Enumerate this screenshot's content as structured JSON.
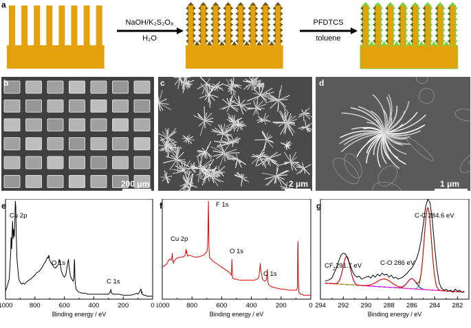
{
  "panel_labels": {
    "a": "a",
    "b": "b",
    "c": "c",
    "d": "d",
    "e": "e",
    "f": "f",
    "g": "g"
  },
  "scheme": {
    "step1_top": "NaOH/K₂S₂O₈",
    "step1_bottom": "H₂O",
    "step2_top": "PFDTCS",
    "step2_bottom": "toluene",
    "colors": {
      "copper": "#e3a20b",
      "nanostructure": "#6e5a1e",
      "fluorinated": "#7bd13a"
    }
  },
  "sem": {
    "b_scale": "200 μm",
    "c_scale": "2 μm",
    "d_scale": "1 μm"
  },
  "chart_data": [
    {
      "type": "line",
      "panel": "e",
      "xlabel": "Binding energy / eV",
      "xlim": [
        1000,
        0
      ],
      "x_ticks": [
        1000,
        800,
        600,
        400,
        200,
        0
      ],
      "annotations": [
        {
          "text": "Cu 2p",
          "x": 933
        },
        {
          "text": "O 1s",
          "x": 531
        },
        {
          "text": "C 1s",
          "x": 285
        }
      ],
      "series": [
        {
          "color": "#000000",
          "x": [
            1000,
            990,
            975,
            965,
            962,
            958,
            955,
            952,
            948,
            945,
            940,
            936,
            933,
            930,
            926,
            922,
            910,
            900,
            890,
            880,
            870,
            860,
            850,
            840,
            830,
            800,
            790,
            780,
            770,
            760,
            750,
            740,
            730,
            720,
            715,
            710,
            705,
            700,
            690,
            680,
            670,
            660,
            650,
            640,
            635,
            630,
            620,
            610,
            600,
            590,
            580,
            572,
            568,
            565,
            560,
            555,
            550,
            545,
            540,
            535,
            532,
            530,
            528,
            525,
            520,
            510,
            500,
            480,
            460,
            440,
            420,
            400,
            380,
            360,
            340,
            320,
            300,
            290,
            286,
            284,
            280,
            270,
            250,
            230,
            200,
            150,
            120,
            110,
            100,
            90,
            80,
            75,
            72,
            70,
            60,
            50,
            40,
            20,
            0
          ],
          "y": [
            0.08,
            0.12,
            0.2,
            0.45,
            0.62,
            0.5,
            0.65,
            0.78,
            0.6,
            0.7,
            0.62,
            0.8,
            0.98,
            0.92,
            0.6,
            0.4,
            0.2,
            0.17,
            0.15,
            0.16,
            0.15,
            0.17,
            0.18,
            0.19,
            0.2,
            0.24,
            0.26,
            0.27,
            0.28,
            0.3,
            0.32,
            0.35,
            0.37,
            0.4,
            0.42,
            0.41,
            0.44,
            0.39,
            0.36,
            0.34,
            0.32,
            0.31,
            0.33,
            0.35,
            0.4,
            0.36,
            0.28,
            0.24,
            0.22,
            0.24,
            0.34,
            0.4,
            0.32,
            0.3,
            0.24,
            0.22,
            0.2,
            0.19,
            0.18,
            0.22,
            0.4,
            0.36,
            0.2,
            0.15,
            0.1,
            0.08,
            0.07,
            0.06,
            0.06,
            0.05,
            0.05,
            0.05,
            0.05,
            0.05,
            0.05,
            0.05,
            0.05,
            0.07,
            0.08,
            0.1,
            0.06,
            0.05,
            0.05,
            0.05,
            0.04,
            0.04,
            0.05,
            0.06,
            0.05,
            0.07,
            0.1,
            0.06,
            0.07,
            0.05,
            0.04,
            0.04,
            0.03,
            0.03,
            0.03
          ]
        }
      ]
    },
    {
      "type": "line",
      "panel": "f",
      "xlabel": "Binding energy / eV",
      "xlim": [
        1000,
        0
      ],
      "x_ticks": [
        1000,
        800,
        600,
        400,
        200,
        0
      ],
      "annotations": [
        {
          "text": "Cu 2p",
          "x": 933
        },
        {
          "text": "F 1s",
          "x": 689
        },
        {
          "text": "O 1s",
          "x": 531
        },
        {
          "text": "C 1s",
          "x": 292
        }
      ],
      "series": [
        {
          "color": "#e00000",
          "x": [
            1000,
            990,
            980,
            970,
            960,
            950,
            940,
            935,
            933,
            930,
            925,
            920,
            910,
            900,
            880,
            860,
            845,
            840,
            838,
            835,
            830,
            820,
            800,
            780,
            760,
            740,
            720,
            710,
            700,
            695,
            692,
            690,
            689,
            688,
            686,
            683,
            680,
            670,
            660,
            650,
            640,
            620,
            600,
            590,
            580,
            570,
            560,
            550,
            545,
            540,
            535,
            533,
            531,
            529,
            527,
            525,
            515,
            500,
            480,
            460,
            440,
            420,
            400,
            380,
            360,
            350,
            345,
            340,
            338,
            335,
            330,
            325,
            320,
            310,
            300,
            295,
            292,
            290,
            288,
            285,
            280,
            270,
            260,
            250,
            230,
            200,
            180,
            150,
            120,
            100,
            95,
            90,
            88,
            86,
            84,
            80,
            75,
            70,
            60,
            50,
            40,
            30,
            20,
            10,
            0
          ],
          "y": [
            0.32,
            0.33,
            0.34,
            0.35,
            0.38,
            0.4,
            0.39,
            0.42,
            0.46,
            0.4,
            0.36,
            0.38,
            0.4,
            0.41,
            0.42,
            0.42,
            0.44,
            0.5,
            0.46,
            0.48,
            0.43,
            0.44,
            0.43,
            0.42,
            0.42,
            0.43,
            0.44,
            0.46,
            0.47,
            0.52,
            0.68,
            0.9,
            0.98,
            0.85,
            0.55,
            0.44,
            0.41,
            0.4,
            0.38,
            0.37,
            0.36,
            0.34,
            0.32,
            0.31,
            0.3,
            0.29,
            0.28,
            0.27,
            0.26,
            0.25,
            0.24,
            0.3,
            0.4,
            0.3,
            0.22,
            0.21,
            0.2,
            0.2,
            0.19,
            0.19,
            0.19,
            0.19,
            0.19,
            0.19,
            0.2,
            0.22,
            0.28,
            0.36,
            0.3,
            0.28,
            0.24,
            0.2,
            0.19,
            0.18,
            0.19,
            0.24,
            0.3,
            0.22,
            0.17,
            0.15,
            0.14,
            0.13,
            0.12,
            0.12,
            0.11,
            0.1,
            0.1,
            0.09,
            0.09,
            0.09,
            0.09,
            0.12,
            0.48,
            0.58,
            0.2,
            0.07,
            0.06,
            0.05,
            0.05,
            0.04,
            0.04,
            0.04,
            0.04,
            0.04,
            0.04
          ]
        }
      ]
    },
    {
      "type": "line",
      "panel": "g",
      "xlabel": "Binding energy / eV",
      "xlim": [
        294,
        281
      ],
      "x_ticks": [
        294,
        292,
        290,
        288,
        286,
        284,
        282
      ],
      "annotations": [
        {
          "text": "C-C 284.6 eV",
          "x": 284.6
        },
        {
          "text": "C-O 286 eV",
          "x": 286.0
        },
        {
          "text": "CF",
          "x": 291.7
        },
        {
          "text": "2",
          "x": 291.7
        },
        {
          "text": " 291.7 eV",
          "x": 291.7
        }
      ],
      "peaks": [
        {
          "center": 284.6,
          "height": 0.82,
          "width": 0.45,
          "color": "#00aa00"
        },
        {
          "center": 286.0,
          "height": 0.1,
          "width": 0.55,
          "color": "#0000dd"
        },
        {
          "center": 288.4,
          "height": 0.08,
          "width": 0.9,
          "color": "#c8a400"
        },
        {
          "center": 291.7,
          "height": 0.28,
          "width": 0.45,
          "color": "#ff00ff"
        }
      ],
      "baseline": {
        "left": 0.16,
        "right": 0.07,
        "color": "#44aa44"
      },
      "series": [
        {
          "name": "raw",
          "color": "#000000",
          "x": [
            293.6,
            293.3,
            293.0,
            292.8,
            292.6,
            292.4,
            292.2,
            292.0,
            291.8,
            291.6,
            291.4,
            291.2,
            291.0,
            290.8,
            290.6,
            290.4,
            290.2,
            290.0,
            289.8,
            289.6,
            289.4,
            289.2,
            289.0,
            288.8,
            288.6,
            288.4,
            288.2,
            288.0,
            287.8,
            287.6,
            287.4,
            287.2,
            287.0,
            286.8,
            286.6,
            286.4,
            286.2,
            286.0,
            285.8,
            285.6,
            285.4,
            285.2,
            285.0,
            284.8,
            284.6,
            284.4,
            284.2,
            284.0,
            283.8,
            283.6,
            283.4,
            283.2,
            283.0,
            282.8,
            282.6,
            282.4,
            282.2,
            282.0,
            281.8,
            281.6,
            281.4
          ],
          "y": [
            0.18,
            0.19,
            0.21,
            0.26,
            0.31,
            0.38,
            0.44,
            0.46,
            0.45,
            0.4,
            0.34,
            0.28,
            0.24,
            0.22,
            0.23,
            0.2,
            0.21,
            0.22,
            0.23,
            0.21,
            0.24,
            0.22,
            0.25,
            0.23,
            0.26,
            0.24,
            0.25,
            0.22,
            0.24,
            0.21,
            0.22,
            0.2,
            0.21,
            0.22,
            0.24,
            0.26,
            0.29,
            0.31,
            0.35,
            0.4,
            0.47,
            0.58,
            0.74,
            0.92,
            1.0,
            0.96,
            0.78,
            0.52,
            0.3,
            0.16,
            0.11,
            0.09,
            0.1,
            0.08,
            0.09,
            0.07,
            0.1,
            0.08,
            0.09,
            0.07,
            0.08
          ]
        }
      ]
    }
  ]
}
